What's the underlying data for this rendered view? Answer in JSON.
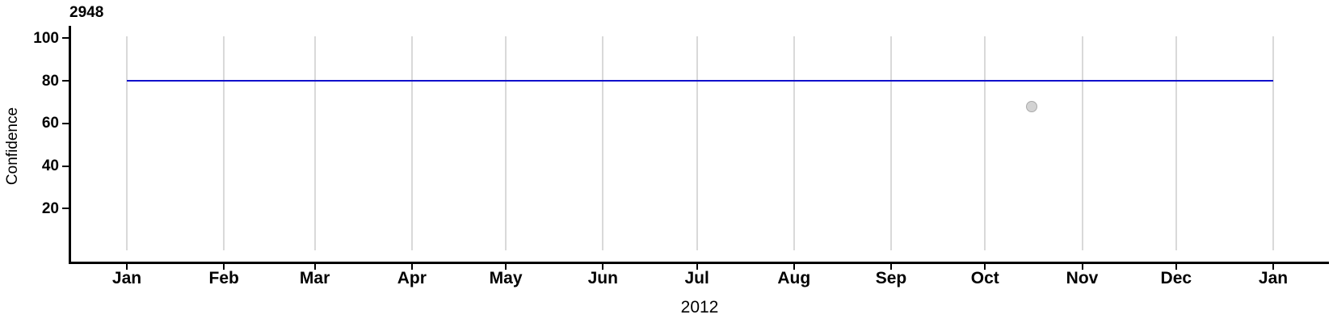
{
  "chart_data": {
    "type": "scatter",
    "title": "2948",
    "xlabel": "2012",
    "ylabel": "Confidence",
    "x_tick_labels": [
      "Jan",
      "Feb",
      "Mar",
      "Apr",
      "May",
      "Jun",
      "Jul",
      "Aug",
      "Sep",
      "Oct",
      "Nov",
      "Dec",
      "Jan"
    ],
    "x_month_start_days": [
      0,
      31,
      60,
      91,
      121,
      152,
      182,
      213,
      244,
      274,
      305,
      335,
      366
    ],
    "x_total_days": 366,
    "y_ticks": [
      20,
      40,
      60,
      80,
      100
    ],
    "ylim": [
      0,
      105
    ],
    "grid": "vertical gridlines at each month, no horizontal gridlines",
    "legend": "none",
    "reference_line": {
      "y": 80,
      "start_day": 0,
      "end_day": 366
    },
    "points": [
      {
        "day_of_year": 289,
        "approx_date": "2012-10-16",
        "value": 68
      }
    ]
  },
  "colors": {
    "reference_line": "#1111cc",
    "gridline": "#d9d9d9",
    "point_fill": "#d3d3d3",
    "point_stroke": "#a9a9a9",
    "axis": "#000000",
    "background": "#ffffff"
  }
}
